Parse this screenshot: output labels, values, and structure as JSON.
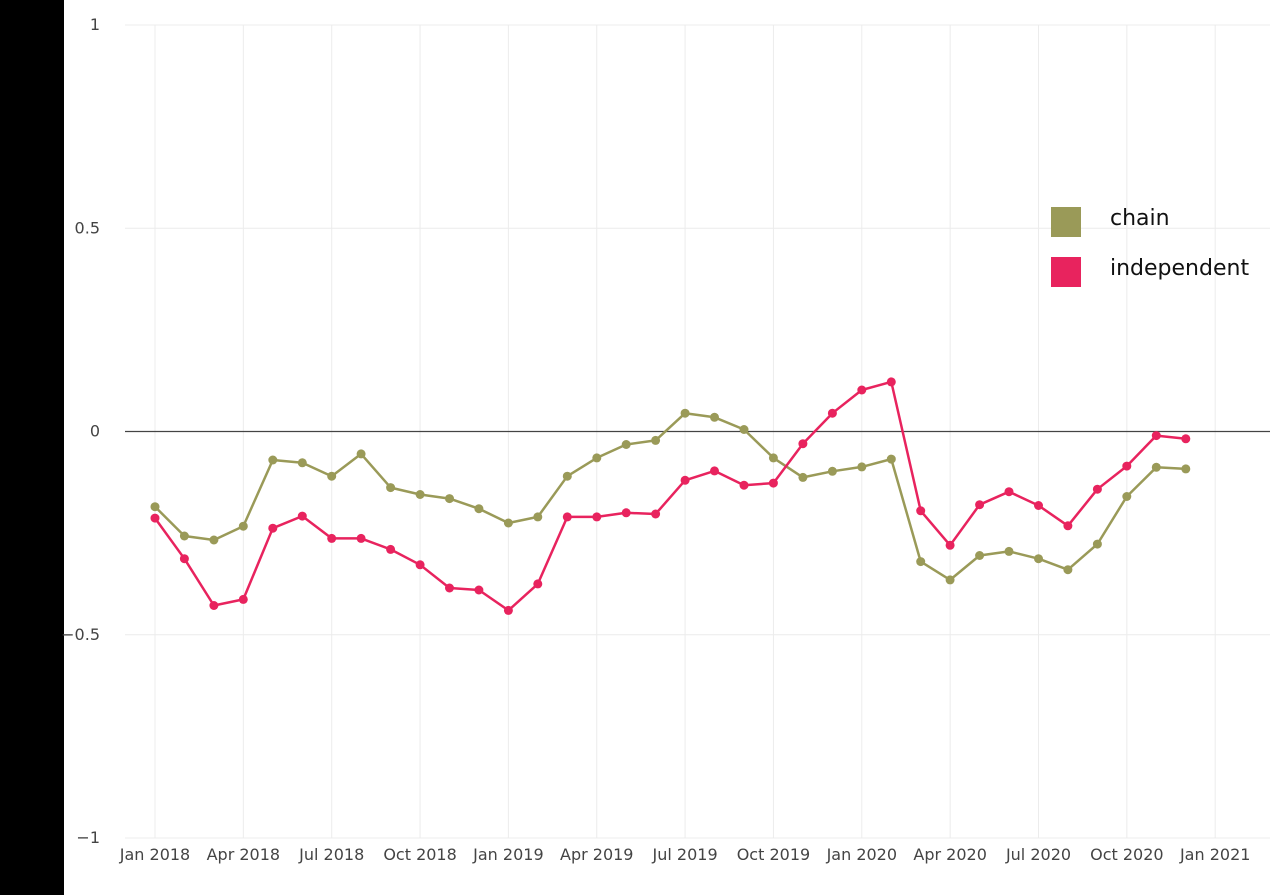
{
  "chart_data": {
    "type": "line",
    "title": "",
    "xlabel": "",
    "ylabel": "",
    "x": [
      "2018-01",
      "2018-02",
      "2018-03",
      "2018-04",
      "2018-05",
      "2018-06",
      "2018-07",
      "2018-08",
      "2018-09",
      "2018-10",
      "2018-11",
      "2018-12",
      "2019-01",
      "2019-02",
      "2019-03",
      "2019-04",
      "2019-05",
      "2019-06",
      "2019-07",
      "2019-08",
      "2019-09",
      "2019-10",
      "2019-11",
      "2019-12",
      "2020-01",
      "2020-02",
      "2020-03",
      "2020-04",
      "2020-05",
      "2020-06",
      "2020-07",
      "2020-08",
      "2020-09",
      "2020-10",
      "2020-11",
      "2020-12"
    ],
    "series": [
      {
        "name": "chain",
        "color": "#9a9a58",
        "values": [
          -0.185,
          -0.257,
          -0.267,
          -0.233,
          -0.07,
          -0.077,
          -0.11,
          -0.055,
          -0.138,
          -0.155,
          -0.165,
          -0.19,
          -0.225,
          -0.21,
          -0.11,
          -0.065,
          -0.032,
          -0.022,
          0.045,
          0.035,
          0.005,
          -0.065,
          -0.113,
          -0.098,
          -0.087,
          -0.068,
          -0.32,
          -0.365,
          -0.305,
          -0.295,
          -0.313,
          -0.34,
          -0.277,
          -0.16,
          -0.088,
          -0.092
        ]
      },
      {
        "name": "independent",
        "color": "#e8235e",
        "values": [
          -0.213,
          -0.313,
          -0.428,
          -0.413,
          -0.238,
          -0.208,
          -0.263,
          -0.263,
          -0.29,
          -0.328,
          -0.385,
          -0.39,
          -0.44,
          -0.375,
          -0.21,
          -0.21,
          -0.2,
          -0.203,
          -0.12,
          -0.097,
          -0.132,
          -0.127,
          -0.03,
          0.045,
          0.102,
          0.122,
          -0.195,
          -0.28,
          -0.18,
          -0.148,
          -0.182,
          -0.232,
          -0.142,
          -0.085,
          -0.01,
          -0.018
        ]
      }
    ],
    "x_tick_labels": [
      "Jan 2018",
      "Apr 2018",
      "Jul 2018",
      "Oct 2018",
      "Jan 2019",
      "Apr 2019",
      "Jul 2019",
      "Oct 2019",
      "Jan 2020",
      "Apr 2020",
      "Jul 2020",
      "Oct 2020",
      "Jan 2021"
    ],
    "y_ticks": [
      1,
      0.5,
      0,
      -0.5,
      -1
    ],
    "y_tick_labels": [
      "1",
      "0.5",
      "0",
      "−0.5",
      "−1"
    ],
    "ylim": [
      -1,
      1
    ],
    "xlim": [
      "2018-01",
      "2021-01"
    ],
    "grid": true,
    "zero_line": true,
    "legend_position": "right"
  }
}
